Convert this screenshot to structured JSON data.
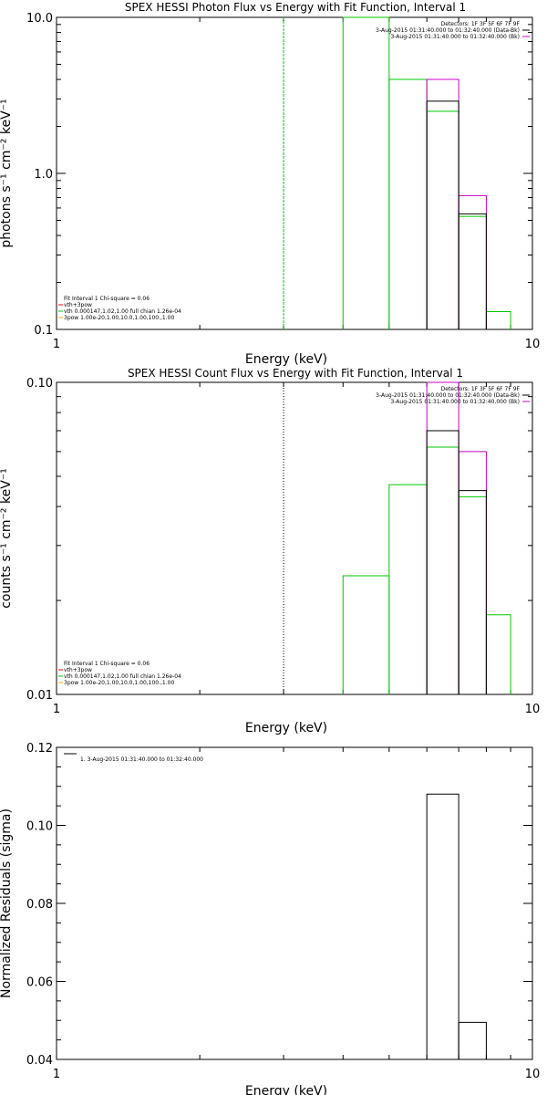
{
  "chart_data": [
    {
      "type": "line",
      "title": "SPEX HESSI Photon Flux vs Energy with Fit Function, Interval 1",
      "xlabel": "Energy (keV)",
      "ylabel": "photons s⁻¹ cm⁻² keV⁻¹",
      "xscale": "log",
      "yscale": "log",
      "xlim": [
        1,
        10
      ],
      "ylim": [
        0.1,
        10.0
      ],
      "x_ticks": [
        {
          "v": 1,
          "label": "1"
        },
        {
          "v": 10,
          "label": "10"
        }
      ],
      "y_ticks": [
        {
          "v": 0.1,
          "label": "0.1"
        },
        {
          "v": 1,
          "label": "1.0"
        },
        {
          "v": 10,
          "label": "10.0"
        }
      ],
      "vline": {
        "x": 3.0,
        "style": "dashed",
        "color": "#00c800"
      },
      "legend_top": [
        {
          "text": "Detectors: 1F 3F 5F 6F 7F 9F",
          "color": null
        },
        {
          "text": "3-Aug-2015 01:31:40.000 to 01:32:40.000 (Data-Bk)",
          "color": "#000000"
        },
        {
          "text": "3-Aug-2015 01:31:40.000 to 01:32:40.000 (Bk)",
          "color": "#c800c8"
        }
      ],
      "legend_bottom": [
        {
          "text": "Fit Interval 1    Chi-square = 0.06",
          "color": null
        },
        {
          "text": "vth+3pow",
          "color": "#ff0000"
        },
        {
          "text": "vth 0.000147,1.02,1.00   full chian 1.26e-04",
          "color": "#00c800"
        },
        {
          "text": "3pow 1.00e-20,1.00,10.0,1.00,100.,1.00",
          "color": "#ffaa00"
        }
      ],
      "series": [
        {
          "color": "#00c800",
          "steps": [
            [
              4.0,
              5.0,
              10.0
            ],
            [
              5.0,
              6.0,
              4.0
            ],
            [
              6.0,
              7.0,
              2.5
            ],
            [
              7.0,
              8.0,
              0.53
            ],
            [
              8.0,
              9.0,
              0.13
            ]
          ]
        },
        {
          "color": "#c800c8",
          "steps": [
            [
              6.0,
              7.0,
              4.0
            ],
            [
              7.0,
              8.0,
              0.72
            ]
          ]
        },
        {
          "color": "#000000",
          "steps": [
            [
              6.0,
              7.0,
              2.9
            ],
            [
              7.0,
              8.0,
              0.55
            ]
          ]
        }
      ]
    },
    {
      "type": "line",
      "title": "SPEX HESSI Count Flux vs Energy with Fit Function, Interval 1",
      "xlabel": "Energy (keV)",
      "ylabel": "counts s⁻¹ cm⁻² keV⁻¹",
      "xscale": "log",
      "yscale": "log",
      "xlim": [
        1,
        10
      ],
      "ylim": [
        0.01,
        0.1
      ],
      "x_ticks": [
        {
          "v": 1,
          "label": "1"
        },
        {
          "v": 10,
          "label": "10"
        }
      ],
      "y_ticks": [
        {
          "v": 0.01,
          "label": "0.01"
        },
        {
          "v": 0.1,
          "label": "0.10"
        }
      ],
      "vline": {
        "x": 3.0,
        "style": "dotted",
        "color": "#000000"
      },
      "legend_top": [
        {
          "text": "Detectors: 1F 3F 5F 6F 7F 9F",
          "color": null
        },
        {
          "text": "3-Aug-2015 01:31:40.000 to 01:32:40.000 (Data-Bk)",
          "color": "#000000"
        },
        {
          "text": "3-Aug-2015 01:31:40.000 to 01:32:40.000 (Bk)",
          "color": "#c800c8"
        }
      ],
      "legend_bottom": [
        {
          "text": "Fit Interval 1    Chi-square = 0.06",
          "color": null
        },
        {
          "text": "vth+3pow",
          "color": "#ff0000"
        },
        {
          "text": "vth 0.000147,1.02,1.00   full chian 1.26e-04",
          "color": "#00c800"
        },
        {
          "text": "3pow 1.00e-20,1.00,10.0,1.00,100.,1.00",
          "color": "#ffaa00"
        }
      ],
      "series": [
        {
          "color": "#00c800",
          "steps": [
            [
              4.0,
              5.0,
              0.024
            ],
            [
              5.0,
              6.0,
              0.047
            ],
            [
              6.0,
              7.0,
              0.062
            ],
            [
              7.0,
              8.0,
              0.043
            ],
            [
              8.0,
              9.0,
              0.018
            ]
          ]
        },
        {
          "color": "#c800c8",
          "steps": [
            [
              6.0,
              7.0,
              0.1
            ],
            [
              7.0,
              8.0,
              0.06
            ]
          ]
        },
        {
          "color": "#000000",
          "steps": [
            [
              6.0,
              7.0,
              0.07
            ],
            [
              7.0,
              8.0,
              0.045
            ]
          ]
        }
      ]
    },
    {
      "type": "line",
      "title": "",
      "xlabel": "Energy (keV)",
      "ylabel": "Normalized Residuals (sigma)",
      "xscale": "log",
      "yscale": "linear",
      "xlim": [
        1,
        10
      ],
      "ylim": [
        0.04,
        0.12
      ],
      "x_ticks": [
        {
          "v": 1,
          "label": "1"
        },
        {
          "v": 10,
          "label": "10"
        }
      ],
      "y_ticks": [
        {
          "v": 0.04,
          "label": "0.04"
        },
        {
          "v": 0.06,
          "label": "0.06"
        },
        {
          "v": 0.08,
          "label": "0.08"
        },
        {
          "v": 0.1,
          "label": "0.10"
        },
        {
          "v": 0.12,
          "label": "0.12"
        }
      ],
      "vline": null,
      "legend_top": [
        {
          "text": "1.  3-Aug-2015 01:31:40.000 to 01:32:40.000",
          "color": "#000000"
        }
      ],
      "legend_bottom": [],
      "series": [
        {
          "color": "#000000",
          "steps": [
            [
              6.0,
              7.0,
              0.108
            ],
            [
              7.0,
              8.0,
              0.0495
            ]
          ]
        }
      ]
    }
  ]
}
